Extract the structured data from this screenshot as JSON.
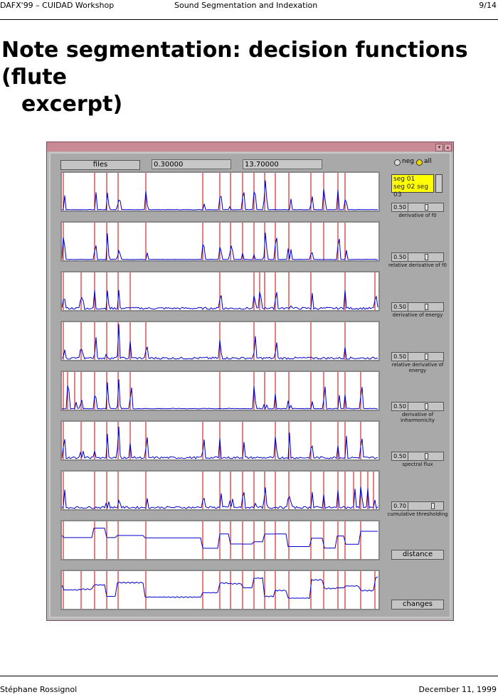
{
  "header": {
    "left": "DAFX'99 – CUIDAD Workshop",
    "center": "Sound Segmentation and Indexation",
    "page": "9/14"
  },
  "title": {
    "line1": "Note segmentation: decision functions (flute",
    "line2": "excerpt)"
  },
  "app": {
    "files_button": "files",
    "start_time": "0.30000",
    "end_time": "13.70000",
    "radio_options": [
      {
        "label": "neg",
        "selected": false
      },
      {
        "label": "all",
        "selected": true
      }
    ],
    "list_items": [
      "seg 01",
      "seg 02 seg 03"
    ],
    "sliders": [
      {
        "value": "0.50",
        "label": "derivative of f0"
      },
      {
        "value": "0.50",
        "label": "relative derivative of f0"
      },
      {
        "value": "0.50",
        "label": "derivative of energy"
      },
      {
        "value": "0.50",
        "label": "relative derivative of energy"
      },
      {
        "value": "0.50",
        "label": "derivative of inharmonicity"
      },
      {
        "value": "0.50",
        "label": "spectral flux"
      },
      {
        "value": "0.70",
        "label": "cumulative thresholding"
      }
    ],
    "distance_button": "distance",
    "changes_button": "changes"
  },
  "footer": {
    "author": "Stéphane Rossignol",
    "date": "December 11, 1999"
  },
  "colors": {
    "titlebar": "#c98a96",
    "panel": "#a9a9a9",
    "signal": "#0000cc",
    "marker": "#cc0000",
    "list_bg": "#ffff00"
  }
}
